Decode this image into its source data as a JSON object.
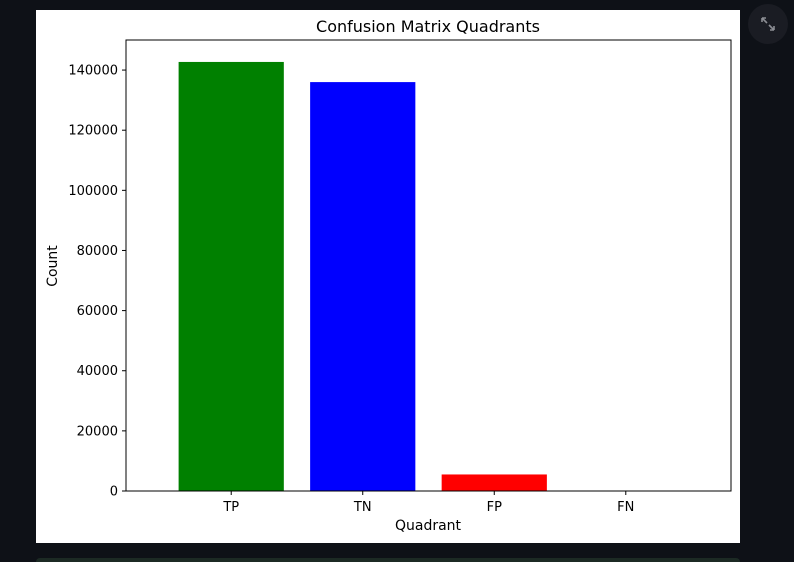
{
  "toolbar": {
    "expand_icon": "fullscreen-expand-icon"
  },
  "chart_data": {
    "type": "bar",
    "title": "Confusion Matrix Quadrants",
    "xlabel": "Quadrant",
    "ylabel": "Count",
    "categories": [
      "TP",
      "TN",
      "FP",
      "FN"
    ],
    "values": [
      142700,
      136000,
      5500,
      0
    ],
    "colors": [
      "#008000",
      "#0000ff",
      "#ff0000",
      "#ffffff"
    ],
    "ylim": [
      0,
      150000
    ],
    "yticks": [
      0,
      20000,
      40000,
      60000,
      80000,
      100000,
      120000,
      140000
    ],
    "ytick_labels": [
      "0",
      "20000",
      "40000",
      "60000",
      "80000",
      "100000",
      "120000",
      "140000"
    ],
    "grid": false,
    "legend": "none"
  }
}
